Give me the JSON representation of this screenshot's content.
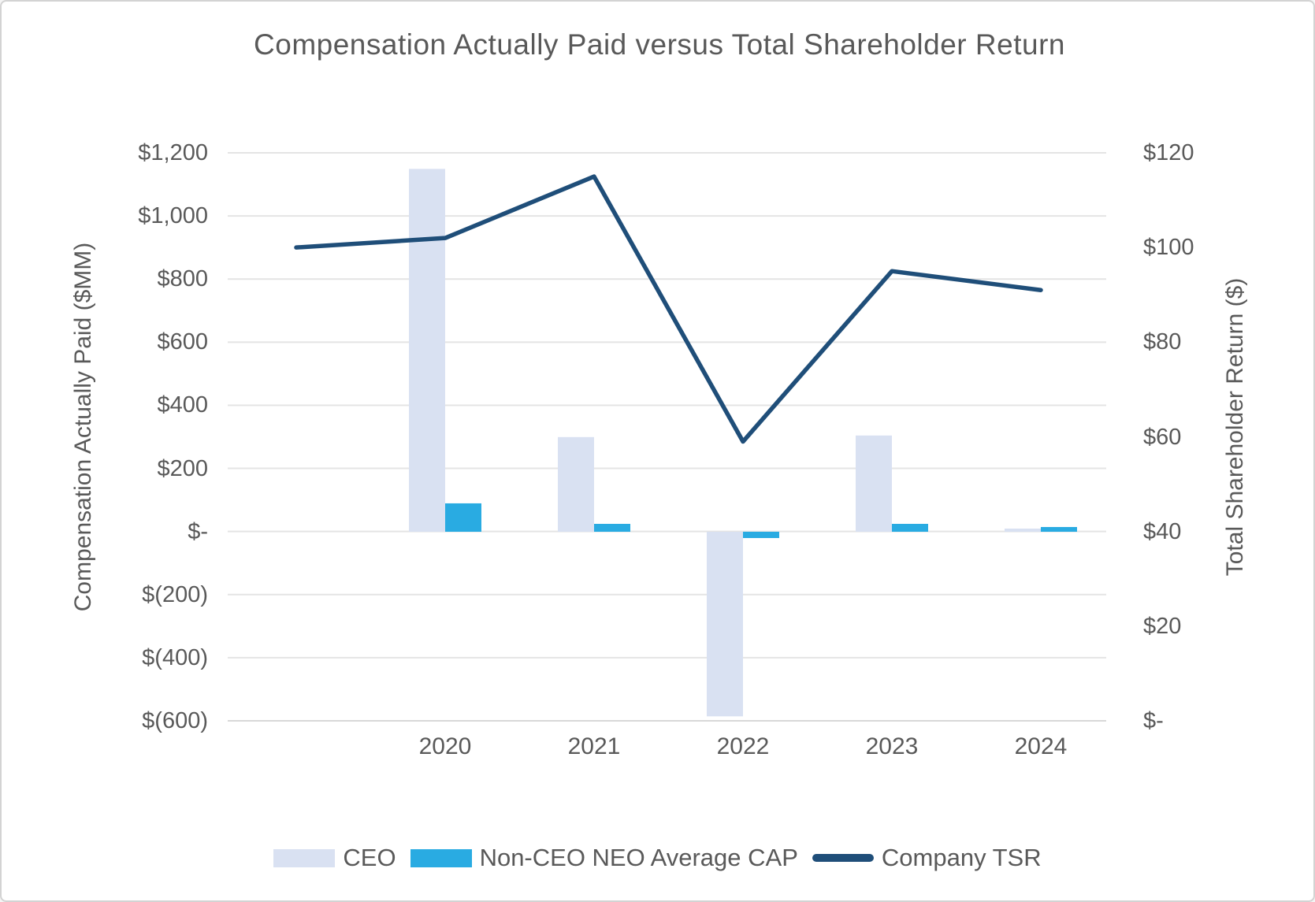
{
  "page": {
    "title": "Compensation Actually Paid versus Total Shareholder Return"
  },
  "chart_data": {
    "type": "combo",
    "subtype": "bars-plus-line-dual-axis",
    "title": "Compensation Actually Paid versus Total Shareholder Return",
    "categories": [
      "",
      "2020",
      "2021",
      "2022",
      "2023",
      "2024"
    ],
    "series": [
      {
        "name": "CEO",
        "type": "bar",
        "axis": "left",
        "color": "#D9E1F2",
        "values": [
          null,
          1150,
          300,
          -585,
          305,
          10
        ]
      },
      {
        "name": "Non-CEO NEO Average CAP",
        "type": "bar",
        "axis": "left",
        "color": "#29ABE2",
        "values": [
          null,
          90,
          25,
          -20,
          25,
          15
        ]
      },
      {
        "name": "Company TSR",
        "type": "line",
        "axis": "right",
        "color": "#1F4E79",
        "values": [
          100,
          102,
          115,
          59,
          95,
          91
        ]
      }
    ],
    "left_axis": {
      "title": "Compensation Actually Paid ($MM)",
      "min": -600,
      "max": 1200,
      "tick_step": 200,
      "ticks": [
        "$1,200",
        "$1,000",
        "$800",
        "$600",
        "$400",
        "$200",
        "$-",
        "$(200)",
        "$(400)",
        "$(600)"
      ]
    },
    "right_axis": {
      "title": "Total Shareholder Return ($)",
      "min": 0,
      "max": 120,
      "tick_step": 20,
      "ticks": [
        "$120",
        "$100",
        "$80",
        "$60",
        "$40",
        "$20",
        "$-"
      ]
    },
    "x_axis": {
      "labels": [
        "2020",
        "2021",
        "2022",
        "2023",
        "2024"
      ]
    },
    "grid": true,
    "legend_position": "bottom"
  },
  "colors": {
    "background": "#FFFFFF",
    "border": "#D3D3D3",
    "text": "#595959",
    "gridline": "#E4E4E4",
    "axis_line": "#D8D8D8"
  }
}
